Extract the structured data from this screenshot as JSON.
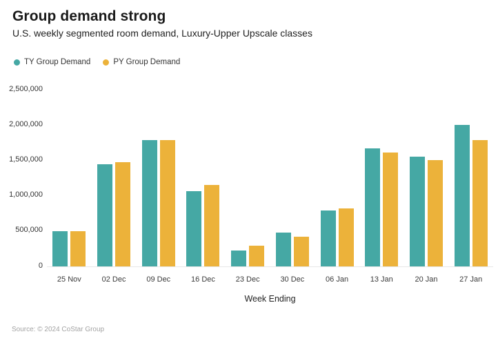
{
  "header": {
    "title": "Group demand strong",
    "subtitle": "U.S. weekly segmented room demand, Luxury-Upper Upscale classes"
  },
  "chart_data": {
    "type": "bar",
    "title": "Group demand strong",
    "subtitle": "U.S. weekly segmented room demand, Luxury-Upper Upscale classes",
    "categories": [
      "25 Nov",
      "02 Dec",
      "09 Dec",
      "16 Dec",
      "23 Dec",
      "30 Dec",
      "06 Jan",
      "13 Jan",
      "20 Jan",
      "27 Jan"
    ],
    "series": [
      {
        "name": "TY Group Demand",
        "color": "#45a8a4",
        "values": [
          500000,
          1450000,
          1790000,
          1060000,
          225000,
          475000,
          795000,
          1670000,
          1550000,
          2000000
        ]
      },
      {
        "name": "PY Group Demand",
        "color": "#ecb23a",
        "values": [
          495000,
          1470000,
          1790000,
          1150000,
          295000,
          420000,
          825000,
          1610000,
          1500000,
          1790000
        ]
      }
    ],
    "xlabel": "Week Ending",
    "ylabel": "",
    "ylim": [
      0,
      2500000
    ],
    "yticks": [
      0,
      500000,
      1000000,
      1500000,
      2000000,
      2500000
    ],
    "grid": false,
    "legend_position": "top-left"
  },
  "footer": {
    "source": "Source: © 2024 CoStar Group"
  }
}
